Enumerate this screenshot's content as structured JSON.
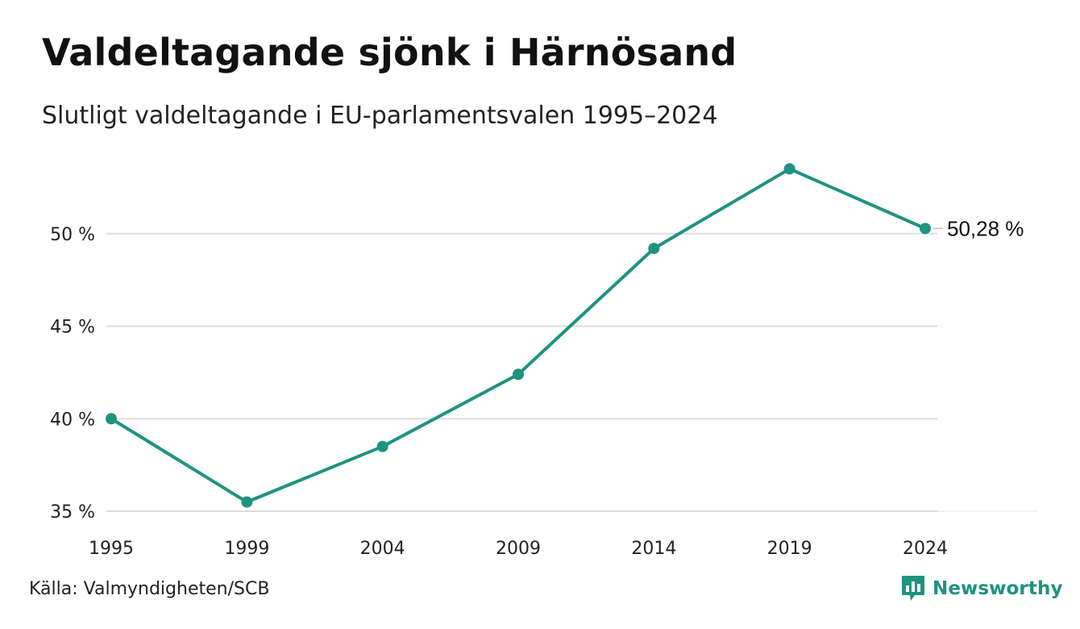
{
  "header": {
    "title": "Valdeltagande sjönk i Härnösand",
    "subtitle": "Slutligt valdeltagande i EU-parlamentsvalen 1995–2024"
  },
  "footer": {
    "source": "Källa: Valmyndigheten/SCB",
    "logo_text": "Newsworthy",
    "logo_icon": "bar-chart-speech-bubble-icon"
  },
  "colors": {
    "line": "#1f9280",
    "grid": "#dddddd",
    "text": "#222222",
    "brand": "#1f9280"
  },
  "chart_data": {
    "type": "line",
    "title": "Valdeltagande sjönk i Härnösand",
    "subtitle": "Slutligt valdeltagande i EU-parlamentsvalen 1995–2024",
    "x": [
      "1995",
      "1999",
      "2004",
      "2009",
      "2014",
      "2019",
      "2024"
    ],
    "series": [
      {
        "values": [
          40.0,
          35.5,
          38.5,
          42.4,
          49.2,
          53.5,
          50.28
        ]
      }
    ],
    "y_ticks": [
      35,
      40,
      45,
      50
    ],
    "y_tick_labels": [
      "35 %",
      "40 %",
      "45 %",
      "50 %"
    ],
    "ylim": [
      35,
      55
    ],
    "end_label": "50,28 %",
    "grid": "horizontal",
    "legend": "none",
    "xlabel": "",
    "ylabel": ""
  }
}
